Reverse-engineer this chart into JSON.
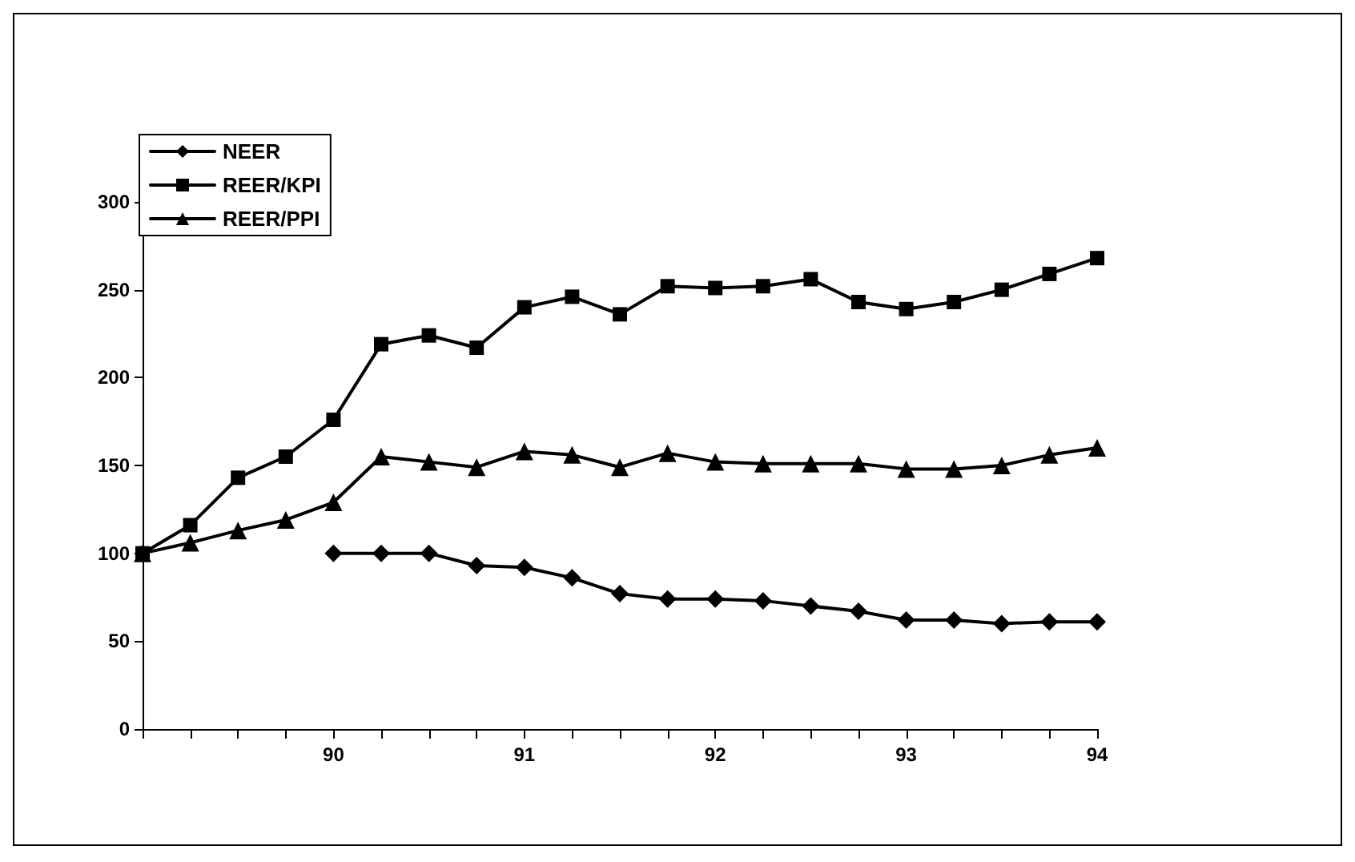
{
  "chart_data": {
    "type": "line",
    "x": [
      89,
      89.25,
      89.5,
      89.75,
      90,
      90.25,
      90.5,
      90.75,
      91,
      91.25,
      91.5,
      91.75,
      92,
      92.25,
      92.5,
      92.75,
      93,
      93.25,
      93.5,
      93.75,
      94
    ],
    "series": [
      {
        "name": "NEER",
        "color": "#000000",
        "marker": "diamond",
        "values": [
          null,
          null,
          null,
          null,
          100,
          100,
          100,
          93,
          92,
          86,
          77,
          74,
          74,
          73,
          70,
          67,
          62,
          62,
          60,
          61,
          61
        ]
      },
      {
        "name": "REER/KPI",
        "color": "#000000",
        "marker": "square",
        "values": [
          100,
          116,
          143,
          155,
          176,
          219,
          224,
          217,
          240,
          246,
          236,
          252,
          251,
          252,
          256,
          243,
          239,
          243,
          250,
          259,
          268
        ]
      },
      {
        "name": "REER/PPI",
        "color": "#000000",
        "marker": "triangle",
        "values": [
          100,
          106,
          113,
          119,
          129,
          155,
          152,
          149,
          158,
          156,
          149,
          157,
          152,
          151,
          151,
          151,
          148,
          148,
          150,
          156,
          160
        ]
      }
    ],
    "xlim": [
      89,
      94
    ],
    "xticks": [
      {
        "value": 89,
        "label": null
      },
      {
        "value": 89.25,
        "label": null
      },
      {
        "value": 89.5,
        "label": null
      },
      {
        "value": 89.75,
        "label": null
      },
      90,
      {
        "value": 90.25,
        "label": null
      },
      {
        "value": 90.5,
        "label": null
      },
      {
        "value": 90.75,
        "label": null
      },
      91,
      {
        "value": 91.25,
        "label": null
      },
      {
        "value": 91.5,
        "label": null
      },
      {
        "value": 91.75,
        "label": null
      },
      92,
      {
        "value": 92.25,
        "label": null
      },
      {
        "value": 92.5,
        "label": null
      },
      {
        "value": 92.75,
        "label": null
      },
      93,
      {
        "value": 93.25,
        "label": null
      },
      {
        "value": 93.5,
        "label": null
      },
      {
        "value": 93.75,
        "label": null
      },
      94
    ],
    "ylim": [
      0,
      300
    ],
    "yticks": [
      0,
      50,
      100,
      150,
      200,
      250,
      300
    ],
    "grid": false,
    "legend": "top left",
    "line_style": "solid"
  }
}
